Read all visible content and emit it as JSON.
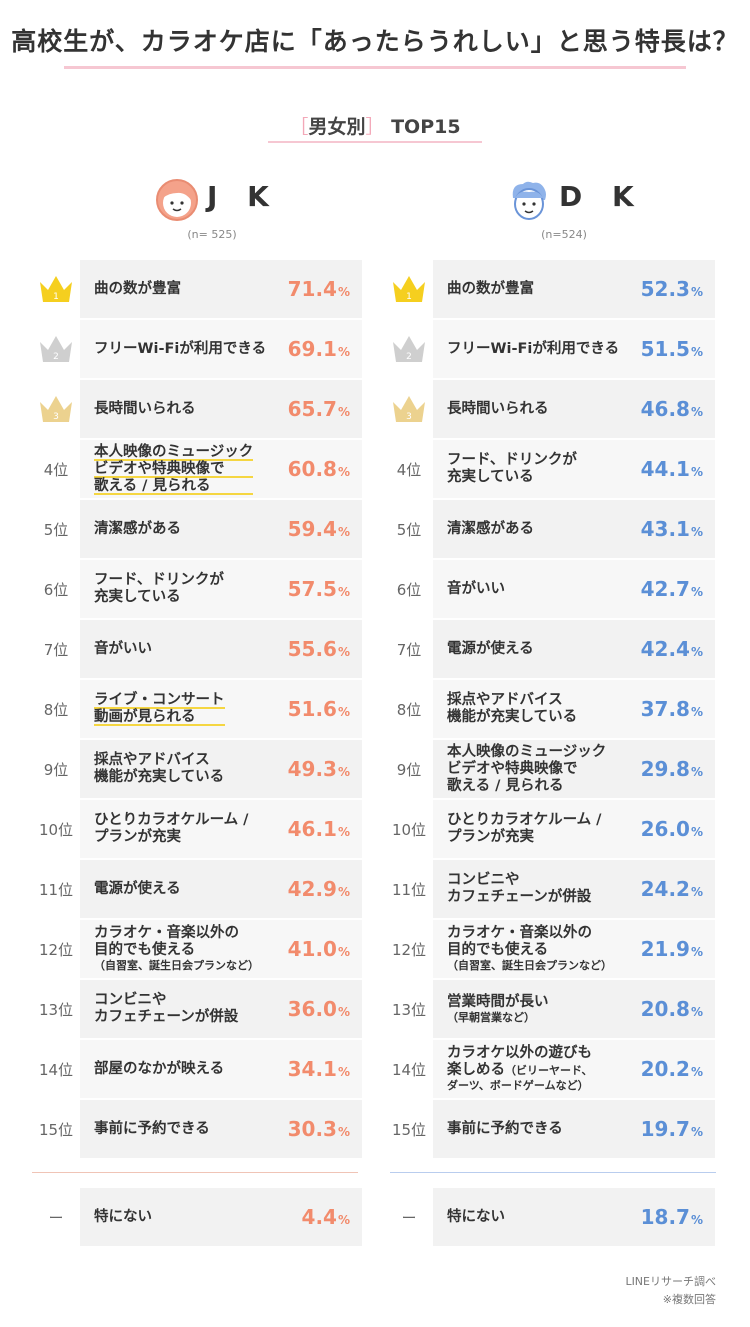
{
  "title": "高校生が、カラオケ店に「あったらうれしい」と思う特長は？",
  "subtitle": {
    "open": "［",
    "text": "男女別",
    "close": "］",
    "rank": "TOP15"
  },
  "colors": {
    "jk": "#f28b6c",
    "dk": "#5b8fd6",
    "crown_gold": "#f5cf1f",
    "crown_silver": "#cfcfcf",
    "crown_bronze": "#ecd28f"
  },
  "chart_data": {
    "type": "table",
    "title": "高校生が、カラオケ店に「あったらうれしい」と思う特長は？",
    "groups": [
      {
        "name": "J K",
        "n": "(n= 525)",
        "items": [
          {
            "rank": "1",
            "lines": [
              "曲の数が豊富"
            ],
            "value": 71.4
          },
          {
            "rank": "2",
            "lines": [
              "フリーWi-Fiが利用できる"
            ],
            "value": 69.1
          },
          {
            "rank": "3",
            "lines": [
              "長時間いられる"
            ],
            "value": 65.7
          },
          {
            "rank": "4位",
            "lines": [
              "本人映像のミュージック",
              "ビデオや特典映像で",
              "歌える / 見られる"
            ],
            "value": 60.8,
            "highlight": true
          },
          {
            "rank": "5位",
            "lines": [
              "清潔感がある"
            ],
            "value": 59.4
          },
          {
            "rank": "6位",
            "lines": [
              "フード、ドリンクが",
              "充実している"
            ],
            "value": 57.5
          },
          {
            "rank": "7位",
            "lines": [
              "音がいい"
            ],
            "value": 55.6
          },
          {
            "rank": "8位",
            "lines": [
              "ライブ・コンサート",
              "動画が見られる"
            ],
            "value": 51.6,
            "highlight": true
          },
          {
            "rank": "9位",
            "lines": [
              "採点やアドバイス",
              "機能が充実している"
            ],
            "value": 49.3
          },
          {
            "rank": "10位",
            "lines": [
              "ひとりカラオケルーム /",
              "プランが充実"
            ],
            "value": 46.1
          },
          {
            "rank": "11位",
            "lines": [
              "電源が使える"
            ],
            "value": 42.9
          },
          {
            "rank": "12位",
            "lines": [
              "カラオケ・音楽以外の",
              "目的でも使える"
            ],
            "note": "（自習室、誕生日会プランなど）",
            "value": 41.0
          },
          {
            "rank": "13位",
            "lines": [
              "コンビニや",
              "カフェチェーンが併設"
            ],
            "value": 36.0
          },
          {
            "rank": "14位",
            "lines": [
              "部屋のなかが映える"
            ],
            "value": 34.1
          },
          {
            "rank": "15位",
            "lines": [
              "事前に予約できる"
            ],
            "value": 30.3
          }
        ],
        "other": {
          "rank": "ー",
          "lines": [
            "特にない"
          ],
          "value": 4.4
        }
      },
      {
        "name": "D K",
        "n": "(n=524)",
        "items": [
          {
            "rank": "1",
            "lines": [
              "曲の数が豊富"
            ],
            "value": 52.3
          },
          {
            "rank": "2",
            "lines": [
              "フリーWi-Fiが利用できる"
            ],
            "value": 51.5
          },
          {
            "rank": "3",
            "lines": [
              "長時間いられる"
            ],
            "value": 46.8
          },
          {
            "rank": "4位",
            "lines": [
              "フード、ドリンクが",
              "充実している"
            ],
            "value": 44.1
          },
          {
            "rank": "5位",
            "lines": [
              "清潔感がある"
            ],
            "value": 43.1
          },
          {
            "rank": "6位",
            "lines": [
              "音がいい"
            ],
            "value": 42.7
          },
          {
            "rank": "7位",
            "lines": [
              "電源が使える"
            ],
            "value": 42.4
          },
          {
            "rank": "8位",
            "lines": [
              "採点やアドバイス",
              "機能が充実している"
            ],
            "value": 37.8
          },
          {
            "rank": "9位",
            "lines": [
              "本人映像のミュージック",
              "ビデオや特典映像で",
              "歌える / 見られる"
            ],
            "value": 29.8
          },
          {
            "rank": "10位",
            "lines": [
              "ひとりカラオケルーム /",
              "プランが充実"
            ],
            "value": 26.0
          },
          {
            "rank": "11位",
            "lines": [
              "コンビニや",
              "カフェチェーンが併設"
            ],
            "value": 24.2
          },
          {
            "rank": "12位",
            "lines": [
              "カラオケ・音楽以外の",
              "目的でも使える"
            ],
            "note": "（自習室、誕生日会プランなど）",
            "value": 21.9
          },
          {
            "rank": "13位",
            "lines": [
              "営業時間が長い"
            ],
            "note": "（早朝営業など）",
            "value": 20.8
          },
          {
            "rank": "14位",
            "lines": [
              "カラオケ以外の遊びも",
              "楽しめる"
            ],
            "note_inline": "（ビリーヤード、",
            "note": "ダーツ、ボードゲームなど）",
            "value": 20.2
          },
          {
            "rank": "15位",
            "lines": [
              "事前に予約できる"
            ],
            "value": 19.7
          }
        ],
        "other": {
          "rank": "ー",
          "lines": [
            "特にない"
          ],
          "value": 18.7
        }
      }
    ],
    "unit": "%"
  },
  "footer": {
    "source": "LINEリサーチ調べ",
    "note": "※複数回答"
  }
}
